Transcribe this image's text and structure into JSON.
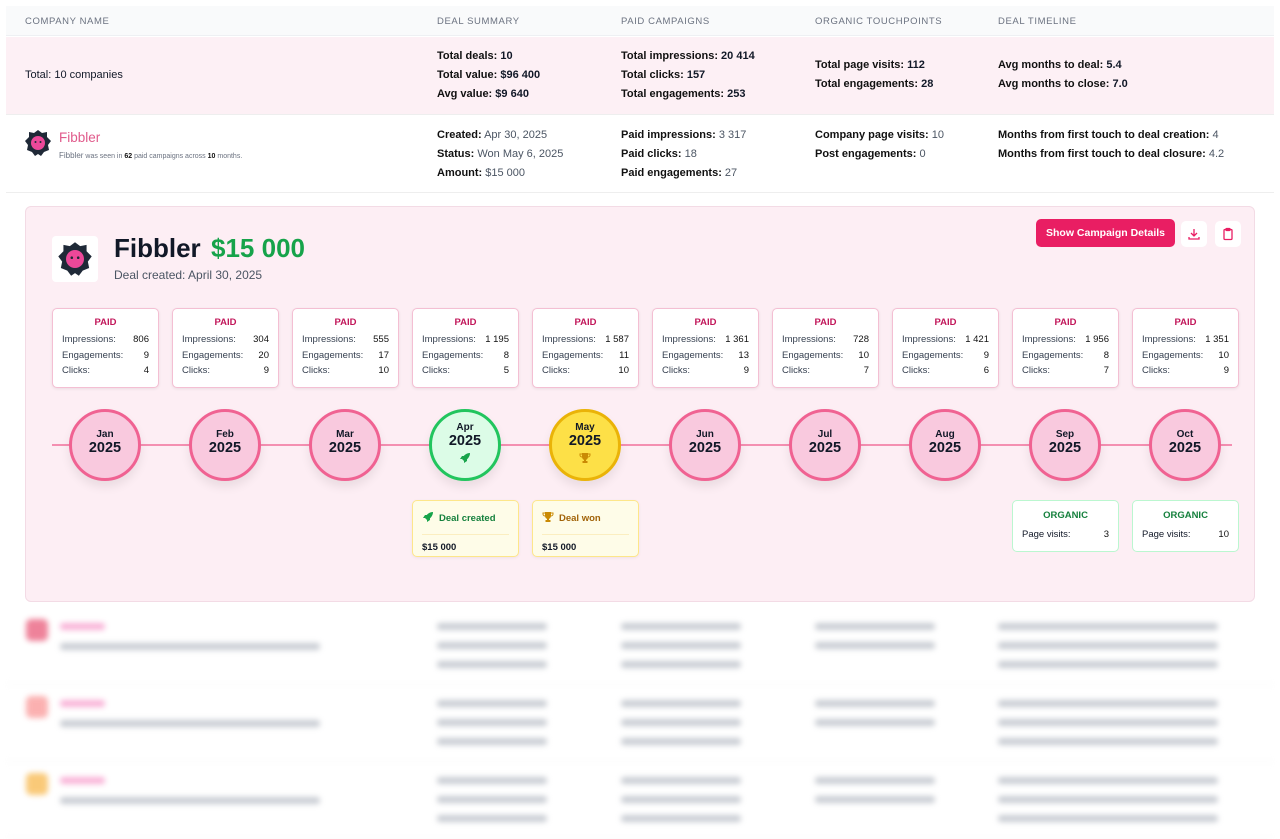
{
  "columns": [
    "COMPANY NAME",
    "DEAL SUMMARY",
    "PAID CAMPAIGNS",
    "ORGANIC TOUCHPOINTS",
    "DEAL TIMELINE"
  ],
  "totals": {
    "label": "Total: 10 companies",
    "deal": [
      {
        "k": "Total deals:",
        "v": "10"
      },
      {
        "k": "Total value:",
        "v": "$96 400"
      },
      {
        "k": "Avg value:",
        "v": "$9 640"
      }
    ],
    "paid": [
      {
        "k": "Total impressions:",
        "v": "20 414"
      },
      {
        "k": "Total clicks:",
        "v": "157"
      },
      {
        "k": "Total engagements:",
        "v": "253"
      }
    ],
    "organic": [
      {
        "k": "Total page visits:",
        "v": "112"
      },
      {
        "k": "Total engagements:",
        "v": "28"
      }
    ],
    "timeline": [
      {
        "k": "Avg months to deal:",
        "v": "5.4"
      },
      {
        "k": "Avg months to close:",
        "v": "7.0"
      }
    ]
  },
  "company": {
    "name": "Fibbler",
    "desc_pre": "Fibbler",
    "desc_a": "was seen in",
    "campaigns": "62",
    "desc_b": "paid campaigns across",
    "months": "10",
    "desc_c": "months.",
    "deal": [
      {
        "k": "Created:",
        "v": "Apr 30, 2025"
      },
      {
        "k": "Status:",
        "v": "Won May 6, 2025"
      },
      {
        "k": "Amount:",
        "v": "$15 000"
      }
    ],
    "paid": [
      {
        "k": "Paid impressions:",
        "v": "3 317"
      },
      {
        "k": "Paid clicks:",
        "v": "18"
      },
      {
        "k": "Paid engagements:",
        "v": "27"
      }
    ],
    "organic": [
      {
        "k": "Company page visits:",
        "v": "10"
      },
      {
        "k": "Post engagements:",
        "v": "0"
      }
    ],
    "timeline": [
      {
        "k": "Months from first touch to deal creation:",
        "v": "4"
      },
      {
        "k": "Months from first touch to deal closure:",
        "v": "4.2"
      }
    ]
  },
  "detail": {
    "name": "Fibbler",
    "amount": "$15 000",
    "created": "Deal created: April 30, 2025",
    "show_button": "Show Campaign Details",
    "paid_label": "PAID",
    "imp_label": "Impressions:",
    "eng_label": "Engagements:",
    "clk_label": "Clicks:",
    "months": [
      {
        "m": "Jan",
        "y": "2025",
        "imp": "806",
        "eng": "9",
        "clk": "4"
      },
      {
        "m": "Feb",
        "y": "2025",
        "imp": "304",
        "eng": "20",
        "clk": "9"
      },
      {
        "m": "Mar",
        "y": "2025",
        "imp": "555",
        "eng": "17",
        "clk": "10"
      },
      {
        "m": "Apr",
        "y": "2025",
        "imp": "1 195",
        "eng": "8",
        "clk": "5",
        "type": "created"
      },
      {
        "m": "May",
        "y": "2025",
        "imp": "1 587",
        "eng": "11",
        "clk": "10",
        "type": "won"
      },
      {
        "m": "Jun",
        "y": "2025",
        "imp": "1 361",
        "eng": "13",
        "clk": "9"
      },
      {
        "m": "Jul",
        "y": "2025",
        "imp": "728",
        "eng": "10",
        "clk": "7"
      },
      {
        "m": "Aug",
        "y": "2025",
        "imp": "1 421",
        "eng": "9",
        "clk": "6"
      },
      {
        "m": "Sep",
        "y": "2025",
        "imp": "1 956",
        "eng": "8",
        "clk": "7",
        "organic": "3"
      },
      {
        "m": "Oct",
        "y": "2025",
        "imp": "1 351",
        "eng": "10",
        "clk": "9",
        "organic": "10"
      }
    ],
    "events": {
      "created": {
        "label": "Deal created",
        "value": "$15 000"
      },
      "won": {
        "label": "Deal won",
        "value": "$15 000"
      }
    },
    "organic_label": "ORGANIC",
    "visits_label": "Page visits:"
  },
  "colors": {
    "brand": "#e91e63",
    "green": "#16a34a",
    "gold": "#eab308"
  }
}
